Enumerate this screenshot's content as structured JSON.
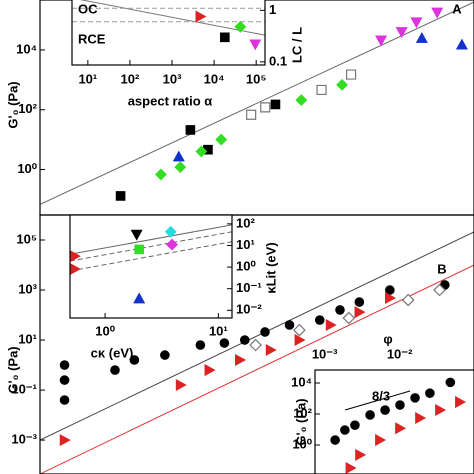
{
  "chart_data": [
    {
      "type": "scatter",
      "xlog": true,
      "ylog": true,
      "panel_label": "A",
      "ylabel": "G'₀ (Pa)",
      "xlim": [
        1e-05,
        10
      ],
      "ylim": [
        0.03,
        470000
      ],
      "yticks": [
        {
          "value": 1,
          "label": "10⁰"
        },
        {
          "value": 100,
          "label": "10²"
        },
        {
          "value": 10000,
          "label": "10⁴"
        }
      ],
      "series": [
        {
          "marker": "square",
          "color": "#000000",
          "x": [
            0.00013,
            0.0012,
            0.0021,
            0.018
          ],
          "y": [
            0.13,
            21,
            4.6,
            150
          ]
        },
        {
          "marker": "diamond",
          "color": "#33dd22",
          "x": [
            0.00047,
            0.00087,
            0.0017,
            0.0032,
            0.041,
            0.15
          ],
          "y": [
            0.68,
            1.2,
            4,
            10,
            210,
            680
          ]
        },
        {
          "marker": "triangle-up",
          "color": "#1133cc",
          "x": [
            0.00083,
            1.9,
            6.8
          ],
          "y": [
            2.7,
            25000,
            15000
          ]
        },
        {
          "marker": "triangle-down",
          "color": "#dd33dd",
          "x": [
            0.52,
            1.0,
            1.6,
            3.1
          ],
          "y": [
            21000,
            40000,
            85000,
            180000
          ]
        },
        {
          "marker": "open-square",
          "color": "#777777",
          "x": [
            0.0083,
            0.013,
            0.078,
            0.2
          ],
          "y": [
            68,
            120,
            460,
            1500
          ]
        }
      ],
      "lines": [
        {
          "color": "#666666",
          "dash": false,
          "x": [
            1e-05,
            10
          ],
          "y": [
            0.068,
            400000
          ]
        }
      ]
    },
    {
      "type": "scatter",
      "xlog": true,
      "ylog": true,
      "xlabel": "aspect ratio α",
      "y2label": "LC / L",
      "annotations": [
        {
          "text": "OC",
          "color": "#000000"
        },
        {
          "text": "RCE",
          "color": "#1122cc"
        }
      ],
      "xlim": [
        4.2,
        162000
      ],
      "y2lim": [
        0.087,
        1.74
      ],
      "xticks": [
        {
          "value": 10,
          "label": "10¹"
        },
        {
          "value": 100,
          "label": "10²"
        },
        {
          "value": 1000,
          "label": "10³"
        },
        {
          "value": 10000,
          "label": "10⁴"
        },
        {
          "value": 100000,
          "label": "10⁵"
        }
      ],
      "y2ticks": [
        0.1,
        1
      ],
      "series": [
        {
          "marker": "triangle-right",
          "color": "#dd2222",
          "axis": "y2",
          "x": [
            4700
          ],
          "y": [
            0.76
          ]
        },
        {
          "marker": "square",
          "color": "#000000",
          "axis": "y2",
          "x": [
            18000
          ],
          "y": [
            0.3
          ]
        },
        {
          "marker": "diamond",
          "color": "#33dd22",
          "axis": "y2",
          "x": [
            42000
          ],
          "y": [
            0.48
          ]
        },
        {
          "marker": "triangle-down",
          "color": "#dd33dd",
          "axis": "y2",
          "x": [
            95000
          ],
          "y": [
            0.22
          ]
        }
      ],
      "lines": [
        {
          "color": "#777777",
          "dash": false,
          "axis": "y2",
          "x": [
            4.2,
            162000
          ],
          "y": [
            1.74,
            0.33
          ]
        },
        {
          "color": "#999999",
          "dash": true,
          "axis": "y2",
          "x": [
            4.2,
            162000
          ],
          "y": [
            1.1,
            1.1
          ]
        },
        {
          "color": "#999999",
          "dash": true,
          "axis": "y2",
          "x": [
            4.2,
            162000
          ],
          "y": [
            0.6,
            0.6
          ]
        }
      ]
    },
    {
      "type": "scatter",
      "xlog": true,
      "ylog": true,
      "panel_label": "B",
      "ylabel": "G'₀ (Pa)",
      "xlabel": "φ",
      "xlim": [
        1.6e-07,
        0.098
      ],
      "ylim": [
        4.4e-05,
        1000000
      ],
      "xticks": [
        {
          "value": 0.001,
          "label": "10⁻³"
        },
        {
          "value": 0.01,
          "label": "10⁻²"
        }
      ],
      "yticks": [
        {
          "value": 0.001,
          "label": "10⁻³"
        },
        {
          "value": 0.1,
          "label": "10⁻¹"
        },
        {
          "value": 10,
          "label": "10¹"
        },
        {
          "value": 1000,
          "label": "10³"
        },
        {
          "value": 100000,
          "label": "10⁵"
        }
      ],
      "series": [
        {
          "marker": "circle",
          "color": "#000000",
          "x": [
            3.4e-07,
            3.4e-07,
            3.4e-07,
            1.6e-06,
            2.9e-06,
            7.4e-06,
            2.2e-05,
            4.6e-05,
            8.6e-05,
            0.00016,
            0.00034,
            0.00086,
            0.0016,
            0.0029,
            0.0074,
            0.04
          ],
          "y": [
            0.25,
            0.04,
            1,
            0.63,
            1.6,
            2.5,
            6.3,
            7.6,
            10,
            21,
            40,
            63,
            160,
            330,
            1000,
            1600
          ]
        },
        {
          "marker": "triangle-right",
          "color": "#dd2222",
          "x": [
            3.4e-07,
            1.2e-05,
            2.9e-05,
            7.4e-05,
            0.00019,
            0.00046,
            0.0012,
            0.0029,
            0.0074
          ],
          "y": [
            0.001,
            0.16,
            0.63,
            1.6,
            4,
            10,
            40,
            130,
            480
          ]
        },
        {
          "marker": "open-diamond",
          "color": "#777777",
          "x": [
            0.00012,
            0.00046,
            0.0021,
            0.013,
            0.034
          ],
          "y": [
            6.3,
            25,
            76,
            400,
            1000
          ]
        }
      ],
      "lines": [
        {
          "color": "#444444",
          "dash": false,
          "x": [
            1.6e-07,
            0.098
          ],
          "y": [
            0.001,
            210000
          ]
        },
        {
          "color": "#e03030",
          "dash": false,
          "x": [
            1.6e-07,
            0.098
          ],
          "y": [
            4.4e-05,
            10000
          ]
        }
      ]
    },
    {
      "type": "scatter",
      "xlog": true,
      "ylog": true,
      "xlabel": "cκ (eV)",
      "y2label": "κLit (eV)",
      "xlim": [
        0.49,
        13.2
      ],
      "y2lim": [
        0.0044,
        257
      ],
      "xticks": [
        {
          "value": 1,
          "label": "10⁰"
        },
        {
          "value": 10,
          "label": "10¹"
        }
      ],
      "y2ticks": [
        {
          "value": 0.01,
          "label": "10⁻²"
        },
        {
          "value": 0.1,
          "label": "10⁻¹"
        },
        {
          "value": 1,
          "label": "10⁰"
        },
        {
          "value": 10,
          "label": "10¹"
        },
        {
          "value": 100,
          "label": "10²"
        }
      ],
      "series": [
        {
          "marker": "triangle-down",
          "color": "#000000",
          "axis": "y2",
          "x": [
            1.9
          ],
          "y": [
            32
          ]
        },
        {
          "marker": "diamond",
          "color": "#22dddd",
          "axis": "y2",
          "x": [
            3.8
          ],
          "y": [
            43
          ]
        },
        {
          "marker": "diamond",
          "color": "#dd33dd",
          "axis": "y2",
          "x": [
            3.9
          ],
          "y": [
            11
          ]
        },
        {
          "marker": "square",
          "color": "#33dd22",
          "axis": "y2",
          "x": [
            2.0
          ],
          "y": [
            6.6
          ]
        },
        {
          "marker": "triangle-right",
          "color": "#dd2222",
          "axis": "y2",
          "x": [
            0.54,
            0.54
          ],
          "y": [
            0.81,
            3.2
          ]
        },
        {
          "marker": "triangle-up",
          "color": "#1133cc",
          "axis": "y2",
          "x": [
            2.0
          ],
          "y": [
            0.035
          ]
        }
      ],
      "lines": [
        {
          "color": "#666666",
          "dash": false,
          "axis": "y2",
          "x": [
            0.49,
            13.2
          ],
          "y": [
            3.9,
            90
          ]
        },
        {
          "color": "#666666",
          "dash": true,
          "axis": "y2",
          "x": [
            0.49,
            13.2
          ],
          "y": [
            1.9,
            43
          ]
        },
        {
          "color": "#666666",
          "dash": true,
          "axis": "y2",
          "x": [
            0.49,
            13.2
          ],
          "y": [
            0.66,
            15
          ]
        }
      ]
    },
    {
      "type": "scatter",
      "xlog": true,
      "ylog": true,
      "ylabel": "G'₀ (Pa)",
      "annotations": [
        {
          "text": "8/3",
          "color": "#000000"
        }
      ],
      "xlim": [
        1e-06,
        0.1
      ],
      "ylim": [
        0.0135,
        69000
      ],
      "yticks": [
        {
          "value": 1,
          "label": "10⁰"
        },
        {
          "value": 100,
          "label": "10²"
        },
        {
          "value": 10000,
          "label": "10⁴"
        }
      ],
      "series": [
        {
          "marker": "circle",
          "color": "#000000",
          "x": [
            4.3e-06,
            8.7e-06,
            1.8e-05,
            5.4e-05,
            0.00016,
            0.00047,
            0.0014,
            0.0041,
            0.018
          ],
          "y": [
            2.1,
            9.3,
            19,
            87,
            180,
            380,
            1100,
            2200,
            11000
          ]
        },
        {
          "marker": "triangle-right",
          "color": "#dd2222",
          "x": [
            1.3e-05,
            2.6e-05,
            0.00011,
            0.00047,
            0.002,
            0.0085,
            0.036
          ],
          "y": [
            0.033,
            0.23,
            2.1,
            12,
            55,
            180,
            590
          ]
        }
      ]
    }
  ]
}
